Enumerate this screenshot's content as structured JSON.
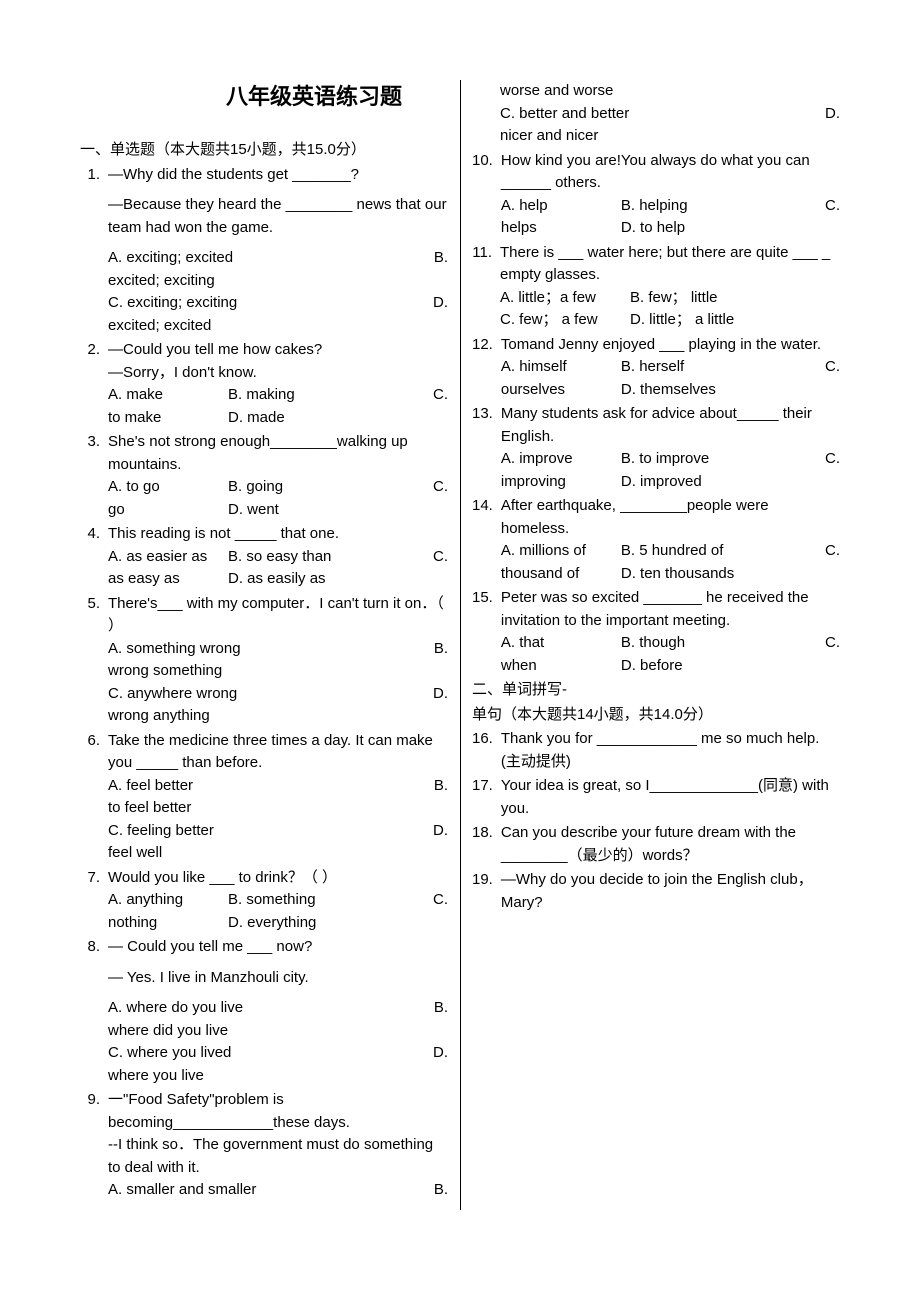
{
  "title": "八年级英语练习题",
  "section1": {
    "heading": "一、单选题（本大题共15小题，共15.0分）"
  },
  "q1": {
    "num": "1.",
    "l1": "—Why did the students get _______?",
    "l2": "—Because they heard the ________ news that our team had won the game.",
    "a": "A. exciting; excited",
    "b": "B. excited; exciting",
    "c": "C. exciting; exciting",
    "d": "D. excited; excited"
  },
  "q2": {
    "num": "2.",
    "l1": "—Could you tell me how     cakes?",
    "l2": "—Sorry，I don't know.",
    "a": "A. make",
    "b": "B. making",
    "c": "C. to make",
    "d": "D. made"
  },
  "q3": {
    "num": "3.",
    "l1": "She's not strong enough________walking up mountains.",
    "a": "A. to go",
    "b": "B. going",
    "c": "C. go",
    "d": "D. went"
  },
  "q4": {
    "num": "4.",
    "l1": "This reading is not _____ that one.",
    "a": "A. as easier as",
    "b": "B. so easy than",
    "c": "C. as easy as",
    "d": "D. as easily as"
  },
  "q5": {
    "num": "5.",
    "l1": "There's___ with my computer．I can't turn it on．（      ）",
    "a": "A. something wrong",
    "b": "B. wrong something",
    "c": "C. anywhere wrong",
    "d": "D. wrong anything"
  },
  "q6": {
    "num": "6.",
    "l1": "Take the medicine three times a day. It can make you _____ than before.",
    "a": "A. feel better",
    "b": "B. to feel better",
    "c": "C. feeling better",
    "d": "D. feel well"
  },
  "q7": {
    "num": "7.",
    "l1": "Would you like ___ to drink？（       ）",
    "a": "A. anything",
    "b": "B. something",
    "c": "C. nothing",
    "d": "D. everything"
  },
  "q8": {
    "num": "8.",
    "l1": "— Could you tell me ___ now?",
    "l2": "— Yes. I live in Manzhouli city.",
    "a": "A. where do you live",
    "b": "B. where did you live",
    "c": "C. where you lived",
    "d": "D. where you live"
  },
  "q9": {
    "num": "9.",
    "l1": "一\"Food Safety\"problem is becoming____________these days.",
    "l2": "--I think so．The government must do something to deal with it.",
    "a": "A. smaller and smaller",
    "b": "B. worse and worse",
    "c": "C. better and better",
    "d": "D. nicer and nicer"
  },
  "q10": {
    "num": "10.",
    "l1": "How kind you are!You always do what you can ______ others.",
    "a": "A. help",
    "b": "B. helping",
    "c": "C. helps",
    "d": "D. to help"
  },
  "q11": {
    "num": "11.",
    "l1": "There is ___ water here; but there are quite ___ _ empty glasses.",
    "a": " A. little；a few",
    "b": "B. few； little",
    "c": "C. few； a few",
    "d": "D. little； a little"
  },
  "q12": {
    "num": "12.",
    "l1": "Tomand Jenny enjoyed ___ playing in the water.",
    "a": "A. himself",
    "b": "B. herself",
    "c": "C. ourselves",
    "d": "D. themselves"
  },
  "q13": {
    "num": "13.",
    "l1": "Many students ask for advice about_____ their English.",
    "a": "A. improve",
    "b": "B.  to improve",
    "c": "C.  improving",
    "d": "D. improved"
  },
  "q14": {
    "num": "14.",
    "l1": "After earthquake, ________people were homeless.",
    "a": "A. millions of",
    "b": "B. 5 hundred of",
    "c": "C. thousand of",
    "d": "D. ten thousands"
  },
  "q15": {
    "num": "15.",
    "l1": "Peter was so excited _______ he received the invitation to the important meeting.",
    "a": "A. that",
    "b": "B. though",
    "c": "C. when",
    "d": "D. before"
  },
  "section2": {
    "heading": "二、单词拼写-",
    "sub": "单句（本大题共14小题，共14.0分）"
  },
  "q16": {
    "num": "16.",
    "l1": "Thank you for ____________ me so much help. (主动提供)"
  },
  "q17": {
    "num": "17.",
    "l1": "Your idea is great, so I_____________(同意) with you."
  },
  "q18": {
    "num": "18.",
    "l1": "Can you describe your future dream with the ________（最少的）words？"
  },
  "q19": {
    "num": "19.",
    "l1": "—Why do you decide to join the English club，Mary?"
  }
}
